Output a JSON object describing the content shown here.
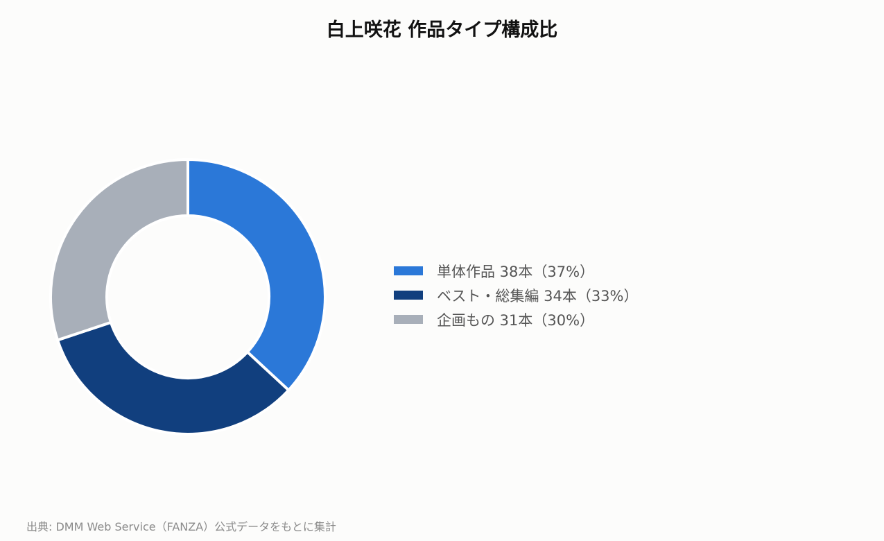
{
  "chart_data": {
    "type": "pie",
    "variant": "donut",
    "title": "白上咲花 作品タイプ構成比",
    "categories": [
      "単体作品",
      "ベスト・総集編",
      "企画もの"
    ],
    "values": [
      38,
      34,
      31
    ],
    "percentages": [
      37,
      33,
      30
    ],
    "colors": [
      "#2b78d8",
      "#113f7e",
      "#a8afb9"
    ],
    "legend_labels": [
      "単体作品 38本（37%）",
      "ベスト・総集編 34本（33%）",
      "企画もの 31本（30%）"
    ],
    "legend_position": "right",
    "source": "出典: DMM Web Service（FANZA）公式データをもとに集計"
  }
}
